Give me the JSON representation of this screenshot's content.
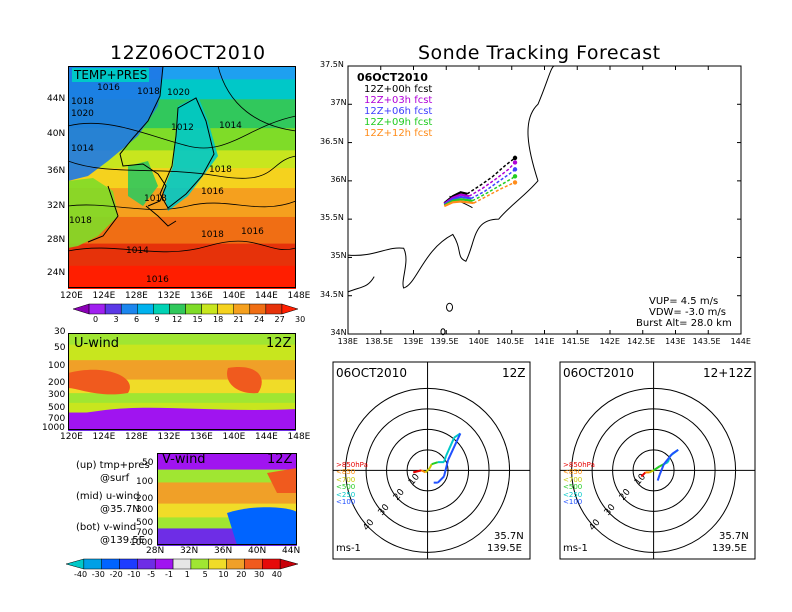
{
  "left_title": "12Z06OCT2010",
  "right_title": "Sonde Tracking Forecast",
  "chart_data": [
    {
      "type": "heatmap",
      "panel": "surface",
      "label": "TEMP+PRES",
      "xlabels": [
        "120E",
        "124E",
        "128E",
        "132E",
        "136E",
        "140E",
        "144E",
        "148E"
      ],
      "ylabels": [
        "24N",
        "28N",
        "32N",
        "36N",
        "40N",
        "44N"
      ],
      "isobars": [
        "1016",
        "1018",
        "1020",
        "1018",
        "1020",
        "1012",
        "1014",
        "1018",
        "1018",
        "1016",
        "1018",
        "1016",
        "1014",
        "1016",
        "1014",
        "1018"
      ],
      "colorbar_ticks": [
        "0",
        "3",
        "6",
        "9",
        "12",
        "15",
        "18",
        "21",
        "24",
        "27",
        "30"
      ],
      "colorbar_colors": [
        "#8a00b5",
        "#a020f0",
        "#5b39e6",
        "#1c86ee",
        "#00b2ee",
        "#00d2b4",
        "#31c85c",
        "#7fdc28",
        "#c8e61e",
        "#f5d21e",
        "#f5a01e",
        "#f06e14",
        "#e6320a",
        "#ff1e00"
      ]
    },
    {
      "type": "heatmap",
      "panel": "u-wind",
      "label": "U-wind",
      "time": "12Z",
      "ylabels": [
        "30",
        "50",
        "100",
        "200",
        "300",
        "500",
        "700",
        "1000"
      ],
      "xlabels": [
        "120E",
        "124E",
        "128E",
        "132E",
        "136E",
        "140E",
        "144E",
        "148E"
      ]
    },
    {
      "type": "heatmap",
      "panel": "v-wind",
      "label": "V-wind",
      "time": "12Z",
      "ylabels": [
        "50",
        "100",
        "200",
        "300",
        "500",
        "700",
        "1000"
      ],
      "xlabels": [
        "28N",
        "32N",
        "36N",
        "40N",
        "44N"
      ],
      "colorbar_ticks": [
        "-40",
        "-30",
        "-20",
        "-10",
        "-5",
        "-1",
        "1",
        "5",
        "10",
        "20",
        "30",
        "40"
      ],
      "colorbar_colors": [
        "#00c8c8",
        "#00a0e6",
        "#0064ff",
        "#1e3cff",
        "#6e2de6",
        "#a014f0",
        "#e6e6e6",
        "#a0e632",
        "#f0dc28",
        "#f0a028",
        "#f05a1e",
        "#e60a0a",
        "#c8000a"
      ]
    },
    {
      "type": "line",
      "panel": "track-map",
      "date": "06OCT2010",
      "xlabels": [
        "138E",
        "138.5E",
        "139E",
        "139.5E",
        "140E",
        "140.5E",
        "141E",
        "141.5E",
        "142E",
        "142.5E",
        "143E",
        "143.5E",
        "144E"
      ],
      "ylabels": [
        "34N",
        "34.5N",
        "35N",
        "35.5N",
        "36N",
        "36.5N",
        "37N",
        "37.5N"
      ],
      "xlim": [
        138,
        144
      ],
      "ylim": [
        34,
        37.5
      ],
      "series": [
        {
          "name": "12Z+00h fcst",
          "color": "#000000",
          "points": [
            [
              139.47,
              35.71
            ],
            [
              139.6,
              35.8
            ],
            [
              139.72,
              35.85
            ],
            [
              139.82,
              35.83
            ],
            [
              140.0,
              35.93
            ],
            [
              140.2,
              36.05
            ],
            [
              140.4,
              36.2
            ],
            [
              140.55,
              36.3
            ]
          ]
        },
        {
          "name": "12Z+03h fcst",
          "color": "#b000d8",
          "points": [
            [
              139.47,
              35.7
            ],
            [
              139.6,
              35.78
            ],
            [
              139.72,
              35.82
            ],
            [
              139.85,
              35.8
            ],
            [
              140.05,
              35.9
            ],
            [
              140.25,
              36.02
            ],
            [
              140.45,
              36.15
            ],
            [
              140.55,
              36.24
            ]
          ]
        },
        {
          "name": "12Z+06h fcst",
          "color": "#4040ff",
          "points": [
            [
              139.47,
              35.69
            ],
            [
              139.6,
              35.76
            ],
            [
              139.72,
              35.79
            ],
            [
              139.88,
              35.77
            ],
            [
              140.08,
              35.86
            ],
            [
              140.28,
              35.98
            ],
            [
              140.48,
              36.1
            ],
            [
              140.55,
              36.15
            ]
          ]
        },
        {
          "name": "12Z+09h fcst",
          "color": "#22cc22",
          "points": [
            [
              139.47,
              35.68
            ],
            [
              139.6,
              35.74
            ],
            [
              139.72,
              35.76
            ],
            [
              139.9,
              35.74
            ],
            [
              140.1,
              35.83
            ],
            [
              140.3,
              35.93
            ],
            [
              140.5,
              36.03
            ],
            [
              140.55,
              36.06
            ]
          ]
        },
        {
          "name": "12Z+12h fcst",
          "color": "#ff8c1a",
          "points": [
            [
              139.47,
              35.67
            ],
            [
              139.6,
              35.72
            ],
            [
              139.72,
              35.73
            ],
            [
              139.92,
              35.71
            ],
            [
              140.12,
              35.8
            ],
            [
              140.32,
              35.89
            ],
            [
              140.52,
              35.97
            ],
            [
              140.55,
              35.98
            ]
          ]
        }
      ],
      "vup": "VUP= 4.5 m/s",
      "vdw": "VDW= -3.0 m/s",
      "burst": "Burst Alt= 28.0 km"
    },
    {
      "type": "line",
      "panel": "hodograph-1",
      "date": "06OCT2010",
      "time": "12Z",
      "ring_labels": [
        "10",
        "20",
        "30",
        "40"
      ],
      "levels": [
        ">850hPa",
        "<850",
        "<700",
        "<500",
        "<250",
        "<100"
      ],
      "level_colors": [
        "#e60000",
        "#ff8c00",
        "#c8c800",
        "#22cc22",
        "#00c8c8",
        "#2050ff"
      ],
      "lat": "35.7N",
      "lon": "139.5E",
      "unit": "ms-1",
      "trace": [
        [
          -7,
          -1,
          "#e60000"
        ],
        [
          -3,
          0,
          "#e60000"
        ],
        [
          -1,
          -1,
          "#ff8c00"
        ],
        [
          1,
          1,
          "#c8c800"
        ],
        [
          2,
          3,
          "#c8c800"
        ],
        [
          5,
          4,
          "#22cc22"
        ],
        [
          8,
          4,
          "#00c8c8"
        ],
        [
          9,
          7,
          "#00c8c8"
        ],
        [
          13,
          16,
          "#00c8c8"
        ],
        [
          16,
          18,
          "#00c8c8"
        ],
        [
          10,
          5,
          "#2050ff"
        ],
        [
          8,
          -3,
          "#2050ff"
        ],
        [
          5,
          -6,
          "#2050ff"
        ],
        [
          3,
          -6,
          "#2050ff"
        ]
      ]
    },
    {
      "type": "line",
      "panel": "hodograph-2",
      "date": "06OCT2010",
      "time": "12+12Z",
      "ring_labels": [
        "10",
        "20",
        "30",
        "40"
      ],
      "levels": [
        ">850hPa",
        "<850",
        "<700",
        "<500",
        "<250",
        "<100"
      ],
      "level_colors": [
        "#e60000",
        "#ff8c00",
        "#c8c800",
        "#22cc22",
        "#00c8c8",
        "#2050ff"
      ],
      "lat": "35.7N",
      "lon": "139.5E",
      "unit": "ms-1",
      "trace": [
        [
          -6,
          -3,
          "#e60000"
        ],
        [
          -4,
          -1,
          "#e60000"
        ],
        [
          -2,
          -1,
          "#ff8c00"
        ],
        [
          0,
          0,
          "#c8c800"
        ],
        [
          3,
          2,
          "#22cc22"
        ],
        [
          5,
          3,
          "#22cc22"
        ],
        [
          7,
          4,
          "#00c8c8"
        ],
        [
          8,
          7,
          "#00c8c8"
        ],
        [
          12,
          10,
          "#00c8c8"
        ],
        [
          9,
          8,
          "#2050ff"
        ],
        [
          5,
          3,
          "#2050ff"
        ],
        [
          3,
          -2,
          "#2050ff"
        ],
        [
          2,
          -5,
          "#2050ff"
        ]
      ]
    }
  ],
  "caption": {
    "up_1": "(up) tmp+pres",
    "up_2": "@surf",
    "mid_1": "(mid) u-wind",
    "mid_2": "@35.7N",
    "bot_1": "(bot) v-wind",
    "bot_2": "@139.5E"
  }
}
